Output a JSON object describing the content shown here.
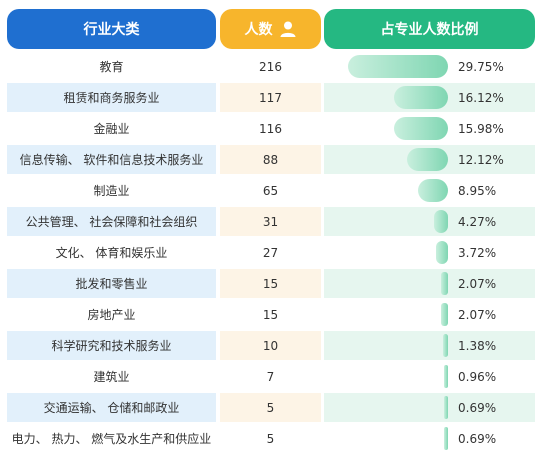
{
  "headers": {
    "industry": "行业大类",
    "count": "人数",
    "share": "占专业人数比例",
    "count_icon": "person-icon"
  },
  "colors": {
    "industry_header": "#1f6fd0",
    "count_header": "#f7b52c",
    "share_header": "#25b882",
    "bar": "#7fd6b2"
  },
  "chart_data": {
    "type": "table",
    "columns": [
      "行业大类",
      "人数",
      "占专业人数比例"
    ],
    "rows": [
      {
        "industry": "教育",
        "count": "216",
        "percent": "29.75%",
        "value": 29.75
      },
      {
        "industry": "租赁和商务服务业",
        "count": "117",
        "percent": "16.12%",
        "value": 16.12
      },
      {
        "industry": "金融业",
        "count": "116",
        "percent": "15.98%",
        "value": 15.98
      },
      {
        "industry": "信息传输、 软件和信息技术服务业",
        "count": "88",
        "percent": "12.12%",
        "value": 12.12
      },
      {
        "industry": "制造业",
        "count": "65",
        "percent": "8.95%",
        "value": 8.95
      },
      {
        "industry": "公共管理、 社会保障和社会组织",
        "count": "31",
        "percent": "4.27%",
        "value": 4.27
      },
      {
        "industry": "文化、 体育和娱乐业",
        "count": "27",
        "percent": "3.72%",
        "value": 3.72
      },
      {
        "industry": "批发和零售业",
        "count": "15",
        "percent": "2.07%",
        "value": 2.07
      },
      {
        "industry": "房地产业",
        "count": "15",
        "percent": "2.07%",
        "value": 2.07
      },
      {
        "industry": "科学研究和技术服务业",
        "count": "10",
        "percent": "1.38%",
        "value": 1.38
      },
      {
        "industry": "建筑业",
        "count": "7",
        "percent": "0.96%",
        "value": 0.96
      },
      {
        "industry": "交通运输、 仓储和邮政业",
        "count": "5",
        "percent": "0.69%",
        "value": 0.69
      },
      {
        "industry": "电力、 热力、 燃气及水生产和供应业",
        "count": "5",
        "percent": "0.69%",
        "value": 0.69
      }
    ]
  }
}
